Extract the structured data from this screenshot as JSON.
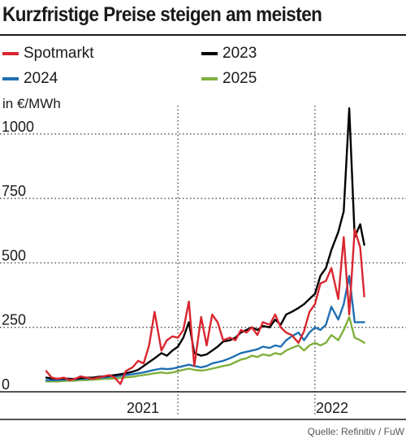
{
  "title": "Kurzfristige Preise steigen am meisten",
  "unit": "in €/MWh",
  "source": "Quelle: Refinitiv / FuW",
  "colors": {
    "Spotmarkt": "#d9262f",
    "2023": "#000000",
    "2024": "#1f6fb2",
    "2025": "#7fb03d",
    "text": "#1a1a1a",
    "grid": "#333333"
  },
  "legend": [
    {
      "label": "Spotmarkt",
      "color": "#d9262f"
    },
    {
      "label": "2023",
      "color": "#000000"
    },
    {
      "label": "2024",
      "color": "#1f6fb2"
    },
    {
      "label": "2025",
      "color": "#7fb03d"
    }
  ],
  "chart_data": {
    "type": "line",
    "title": "Kurzfristige Preise steigen am meisten",
    "ylabel": "in €/MWh",
    "ylim": [
      0,
      1110
    ],
    "yticks": [
      0,
      250,
      500,
      750,
      1000
    ],
    "xlim": [
      2020.04,
      2022.38
    ],
    "xtick_labels": [
      "2021",
      "2022"
    ],
    "period_dividers": [
      2021.0,
      2022.0
    ],
    "grid": "dotted horizontal and vertical lines",
    "x": [
      2020.04,
      2020.08,
      2020.12,
      2020.17,
      2020.21,
      2020.25,
      2020.29,
      2020.33,
      2020.38,
      2020.42,
      2020.46,
      2020.5,
      2020.54,
      2020.58,
      2020.62,
      2020.67,
      2020.71,
      2020.75,
      2020.79,
      2020.83,
      2020.88,
      2020.92,
      2020.96,
      2021.0,
      2021.04,
      2021.08,
      2021.12,
      2021.17,
      2021.21,
      2021.25,
      2021.29,
      2021.33,
      2021.38,
      2021.42,
      2021.46,
      2021.5,
      2021.54,
      2021.58,
      2021.62,
      2021.67,
      2021.71,
      2021.75,
      2021.79,
      2021.83,
      2021.88,
      2021.92,
      2021.96,
      2022.0,
      2022.04,
      2022.08,
      2022.12,
      2022.17,
      2022.21,
      2022.25,
      2022.29,
      2022.33,
      2022.36
    ],
    "series": [
      {
        "name": "Spotmarkt",
        "values": [
          80,
          55,
          50,
          55,
          45,
          50,
          60,
          55,
          50,
          55,
          60,
          65,
          55,
          30,
          80,
          95,
          120,
          110,
          180,
          310,
          160,
          200,
          215,
          210,
          240,
          350,
          100,
          290,
          180,
          300,
          270,
          200,
          210,
          200,
          240,
          230,
          250,
          220,
          270,
          260,
          300,
          250,
          230,
          220,
          190,
          235,
          310,
          340,
          420,
          430,
          480,
          360,
          600,
          300,
          630,
          560,
          370
        ]
      },
      {
        "name": "2023",
        "values": [
          55,
          52,
          50,
          52,
          50,
          50,
          53,
          55,
          55,
          58,
          60,
          62,
          65,
          68,
          72,
          78,
          85,
          100,
          115,
          130,
          150,
          140,
          160,
          175,
          210,
          270,
          150,
          140,
          145,
          160,
          175,
          195,
          200,
          210,
          230,
          240,
          250,
          240,
          255,
          250,
          280,
          260,
          300,
          310,
          325,
          340,
          360,
          380,
          450,
          480,
          550,
          620,
          700,
          1100,
          600,
          650,
          570
        ]
      },
      {
        "name": "2024",
        "values": [
          45,
          45,
          45,
          47,
          48,
          48,
          50,
          50,
          52,
          55,
          55,
          58,
          60,
          62,
          65,
          68,
          72,
          75,
          80,
          85,
          90,
          88,
          90,
          95,
          100,
          105,
          100,
          95,
          100,
          110,
          115,
          120,
          130,
          140,
          150,
          155,
          160,
          165,
          175,
          170,
          180,
          175,
          200,
          215,
          230,
          200,
          230,
          250,
          240,
          260,
          330,
          280,
          340,
          450,
          270,
          270,
          270
        ]
      },
      {
        "name": "2025",
        "values": [
          40,
          40,
          40,
          42,
          43,
          43,
          45,
          45,
          47,
          48,
          50,
          50,
          52,
          54,
          56,
          58,
          62,
          65,
          68,
          72,
          75,
          72,
          75,
          80,
          85,
          90,
          85,
          82,
          85,
          90,
          95,
          100,
          105,
          115,
          125,
          130,
          140,
          135,
          145,
          140,
          150,
          145,
          160,
          170,
          180,
          160,
          180,
          190,
          180,
          190,
          220,
          200,
          240,
          290,
          210,
          200,
          190
        ]
      }
    ]
  }
}
